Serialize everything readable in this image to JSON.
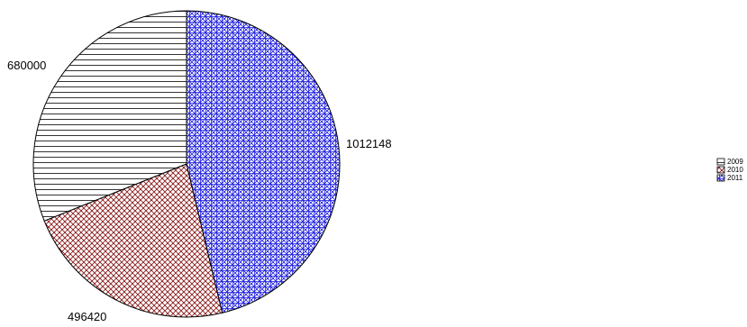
{
  "chart_data": {
    "type": "pie",
    "categories": [
      "2009",
      "2010",
      "2011"
    ],
    "values": [
      680000,
      496420,
      1012148
    ],
    "data_labels": [
      "680000",
      "496420",
      "1012148"
    ],
    "start_angle_deg": 0,
    "direction": "counterclockwise",
    "legend_position": "right",
    "slices": [
      {
        "category": "2009",
        "fill": "horizontal-lines",
        "color": "#000000"
      },
      {
        "category": "2010",
        "fill": "crosshatch",
        "color": "#8B1A1A"
      },
      {
        "category": "2011",
        "fill": "diagonal-crosshatch",
        "color": "#1F1FE0"
      }
    ],
    "legend": {
      "entries": [
        {
          "label": "2009",
          "fill": "horizontal-lines"
        },
        {
          "label": "2010",
          "fill": "crosshatch"
        },
        {
          "label": "2011",
          "fill": "diagonal-crosshatch"
        }
      ]
    }
  }
}
